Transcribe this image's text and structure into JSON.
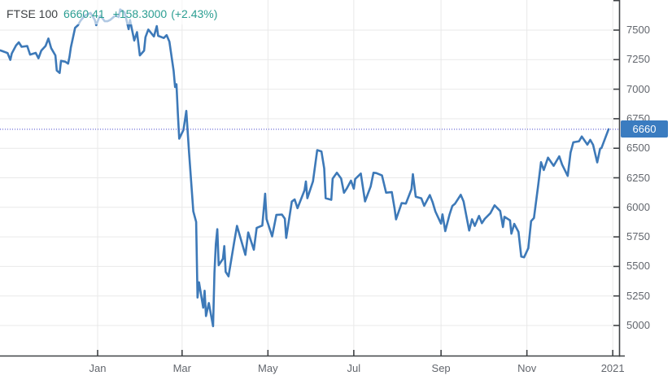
{
  "header": {
    "symbol": "FTSE 100",
    "last_price": "6660.41",
    "change": "+158.3000",
    "change_percent": "(+2.43%)"
  },
  "price_badge": {
    "label": "6660"
  },
  "colors": {
    "background": "#ffffff",
    "line": "#3d79b8",
    "grid": "#e9e9e9",
    "axis": "#3f4245",
    "tick_text": "#62666d",
    "header_symbol": "#3c4043",
    "header_quote": "#2b9e92",
    "dotted_price_line": "#4646cc",
    "badge_background": "#3a7cc0",
    "badge_text": "#ffffff"
  },
  "chart_data": {
    "type": "line",
    "title": "FTSE 100 one-year price chart",
    "legend_position": "top-left",
    "grid": true,
    "current_price": 6660.41,
    "x_axis": {
      "tick_labels": [
        "Jan",
        "Mar",
        "May",
        "Jul",
        "Sep",
        "Nov",
        "2021"
      ],
      "tick_dates": [
        "2020-01-01",
        "2020-03-01",
        "2020-05-01",
        "2020-07-01",
        "2020-09-01",
        "2020-11-01",
        "2021-01-01"
      ]
    },
    "y_axis": {
      "tick_values": [
        7500,
        7250,
        7000,
        6750,
        6500,
        6250,
        6000,
        5750,
        5500,
        5250,
        5000
      ],
      "minor_tick_values": [
        7750
      ],
      "min": 4750,
      "max": 7750,
      "position": "right"
    },
    "series": [
      {
        "name": "FTSE 100",
        "points": [
          [
            "2019-10-24",
            7328
          ],
          [
            "2019-10-25",
            7324
          ],
          [
            "2019-10-29",
            7306
          ],
          [
            "2019-10-31",
            7248
          ],
          [
            "2019-11-01",
            7302
          ],
          [
            "2019-11-04",
            7370
          ],
          [
            "2019-11-06",
            7397
          ],
          [
            "2019-11-08",
            7359
          ],
          [
            "2019-11-12",
            7365
          ],
          [
            "2019-11-14",
            7293
          ],
          [
            "2019-11-18",
            7307
          ],
          [
            "2019-11-20",
            7262
          ],
          [
            "2019-11-22",
            7327
          ],
          [
            "2019-11-25",
            7366
          ],
          [
            "2019-11-27",
            7429
          ],
          [
            "2019-11-29",
            7347
          ],
          [
            "2019-12-02",
            7286
          ],
          [
            "2019-12-03",
            7158
          ],
          [
            "2019-12-05",
            7137
          ],
          [
            "2019-12-06",
            7240
          ],
          [
            "2019-12-09",
            7233
          ],
          [
            "2019-12-11",
            7216
          ],
          [
            "2019-12-12",
            7273
          ],
          [
            "2019-12-13",
            7353
          ],
          [
            "2019-12-16",
            7519
          ],
          [
            "2019-12-18",
            7541
          ],
          [
            "2019-12-20",
            7582
          ],
          [
            "2019-12-23",
            7624
          ],
          [
            "2019-12-27",
            7645
          ],
          [
            "2019-12-30",
            7587
          ],
          [
            "2019-12-31",
            7542
          ],
          [
            "2020-01-02",
            7604
          ],
          [
            "2020-01-03",
            7622
          ],
          [
            "2020-01-06",
            7575
          ],
          [
            "2020-01-08",
            7575
          ],
          [
            "2020-01-10",
            7587
          ],
          [
            "2020-01-13",
            7618
          ],
          [
            "2020-01-14",
            7622
          ],
          [
            "2020-01-16",
            7610
          ],
          [
            "2020-01-17",
            7675
          ],
          [
            "2020-01-20",
            7651
          ],
          [
            "2020-01-21",
            7611
          ],
          [
            "2020-01-23",
            7508
          ],
          [
            "2020-01-24",
            7586
          ],
          [
            "2020-01-27",
            7412
          ],
          [
            "2020-01-29",
            7483
          ],
          [
            "2020-01-30",
            7382
          ],
          [
            "2020-01-31",
            7286
          ],
          [
            "2020-02-03",
            7326
          ],
          [
            "2020-02-04",
            7440
          ],
          [
            "2020-02-06",
            7505
          ],
          [
            "2020-02-10",
            7446
          ],
          [
            "2020-02-12",
            7534
          ],
          [
            "2020-02-13",
            7452
          ],
          [
            "2020-02-17",
            7433
          ],
          [
            "2020-02-19",
            7457
          ],
          [
            "2020-02-21",
            7403
          ],
          [
            "2020-02-24",
            7156
          ],
          [
            "2020-02-25",
            7018
          ],
          [
            "2020-02-26",
            7042
          ],
          [
            "2020-02-27",
            6796
          ],
          [
            "2020-02-28",
            6581
          ],
          [
            "2020-03-02",
            6655
          ],
          [
            "2020-03-04",
            6816
          ],
          [
            "2020-03-06",
            6462
          ],
          [
            "2020-03-09",
            5966
          ],
          [
            "2020-03-11",
            5877
          ],
          [
            "2020-03-12",
            5237
          ],
          [
            "2020-03-13",
            5366
          ],
          [
            "2020-03-16",
            5151
          ],
          [
            "2020-03-17",
            5294
          ],
          [
            "2020-03-18",
            5080
          ],
          [
            "2020-03-20",
            5190
          ],
          [
            "2020-03-23",
            4994
          ],
          [
            "2020-03-24",
            5446
          ],
          [
            "2020-03-25",
            5688
          ],
          [
            "2020-03-26",
            5815
          ],
          [
            "2020-03-27",
            5510
          ],
          [
            "2020-03-30",
            5564
          ],
          [
            "2020-03-31",
            5672
          ],
          [
            "2020-04-01",
            5454
          ],
          [
            "2020-04-03",
            5416
          ],
          [
            "2020-04-07",
            5704
          ],
          [
            "2020-04-09",
            5843
          ],
          [
            "2020-04-15",
            5598
          ],
          [
            "2020-04-17",
            5787
          ],
          [
            "2020-04-21",
            5641
          ],
          [
            "2020-04-23",
            5826
          ],
          [
            "2020-04-27",
            5846
          ],
          [
            "2020-04-29",
            6115
          ],
          [
            "2020-04-30",
            5901
          ],
          [
            "2020-05-04",
            5754
          ],
          [
            "2020-05-07",
            5936
          ],
          [
            "2020-05-11",
            5939
          ],
          [
            "2020-05-13",
            5904
          ],
          [
            "2020-05-14",
            5741
          ],
          [
            "2020-05-18",
            6049
          ],
          [
            "2020-05-20",
            6067
          ],
          [
            "2020-05-22",
            5993
          ],
          [
            "2020-05-27",
            6144
          ],
          [
            "2020-05-28",
            6219
          ],
          [
            "2020-05-29",
            6077
          ],
          [
            "2020-06-02",
            6220
          ],
          [
            "2020-06-05",
            6484
          ],
          [
            "2020-06-08",
            6473
          ],
          [
            "2020-06-10",
            6329
          ],
          [
            "2020-06-11",
            6077
          ],
          [
            "2020-06-15",
            6064
          ],
          [
            "2020-06-16",
            6243
          ],
          [
            "2020-06-19",
            6293
          ],
          [
            "2020-06-22",
            6244
          ],
          [
            "2020-06-24",
            6123
          ],
          [
            "2020-06-26",
            6159
          ],
          [
            "2020-06-29",
            6226
          ],
          [
            "2020-07-01",
            6158
          ],
          [
            "2020-07-02",
            6240
          ],
          [
            "2020-07-06",
            6286
          ],
          [
            "2020-07-09",
            6050
          ],
          [
            "2020-07-13",
            6176
          ],
          [
            "2020-07-15",
            6293
          ],
          [
            "2020-07-17",
            6290
          ],
          [
            "2020-07-21",
            6270
          ],
          [
            "2020-07-24",
            6124
          ],
          [
            "2020-07-28",
            6129
          ],
          [
            "2020-07-30",
            5990
          ],
          [
            "2020-07-31",
            5898
          ],
          [
            "2020-08-04",
            6036
          ],
          [
            "2020-08-07",
            6032
          ],
          [
            "2020-08-11",
            6154
          ],
          [
            "2020-08-12",
            6280
          ],
          [
            "2020-08-14",
            6090
          ],
          [
            "2020-08-18",
            6076
          ],
          [
            "2020-08-20",
            6013
          ],
          [
            "2020-08-24",
            6104
          ],
          [
            "2020-08-26",
            6045
          ],
          [
            "2020-08-28",
            5964
          ],
          [
            "2020-09-01",
            5862
          ],
          [
            "2020-09-02",
            5941
          ],
          [
            "2020-09-04",
            5799
          ],
          [
            "2020-09-07",
            5937
          ],
          [
            "2020-09-09",
            6012
          ],
          [
            "2020-09-11",
            6032
          ],
          [
            "2020-09-15",
            6106
          ],
          [
            "2020-09-17",
            6050
          ],
          [
            "2020-09-21",
            5804
          ],
          [
            "2020-09-23",
            5899
          ],
          [
            "2020-09-25",
            5843
          ],
          [
            "2020-09-28",
            5928
          ],
          [
            "2020-09-30",
            5866
          ],
          [
            "2020-10-02",
            5902
          ],
          [
            "2020-10-06",
            5950
          ],
          [
            "2020-10-09",
            6017
          ],
          [
            "2020-10-13",
            5969
          ],
          [
            "2020-10-15",
            5833
          ],
          [
            "2020-10-16",
            5920
          ],
          [
            "2020-10-20",
            5890
          ],
          [
            "2020-10-21",
            5777
          ],
          [
            "2020-10-23",
            5860
          ],
          [
            "2020-10-26",
            5792
          ],
          [
            "2020-10-28",
            5583
          ],
          [
            "2020-10-30",
            5577
          ],
          [
            "2020-11-02",
            5655
          ],
          [
            "2020-11-04",
            5883
          ],
          [
            "2020-11-06",
            5910
          ],
          [
            "2020-11-09",
            6186
          ],
          [
            "2020-11-11",
            6382
          ],
          [
            "2020-11-13",
            6316
          ],
          [
            "2020-11-16",
            6421
          ],
          [
            "2020-11-18",
            6385
          ],
          [
            "2020-11-20",
            6351
          ],
          [
            "2020-11-24",
            6432
          ],
          [
            "2020-11-26",
            6362
          ],
          [
            "2020-11-30",
            6266
          ],
          [
            "2020-12-02",
            6463
          ],
          [
            "2020-12-04",
            6550
          ],
          [
            "2020-12-08",
            6559
          ],
          [
            "2020-12-10",
            6599
          ],
          [
            "2020-12-14",
            6531
          ],
          [
            "2020-12-16",
            6571
          ],
          [
            "2020-12-18",
            6529
          ],
          [
            "2020-12-21",
            6380
          ],
          [
            "2020-12-23",
            6496
          ],
          [
            "2020-12-24",
            6502
          ],
          [
            "2020-12-29",
            6660.41
          ]
        ]
      }
    ]
  }
}
